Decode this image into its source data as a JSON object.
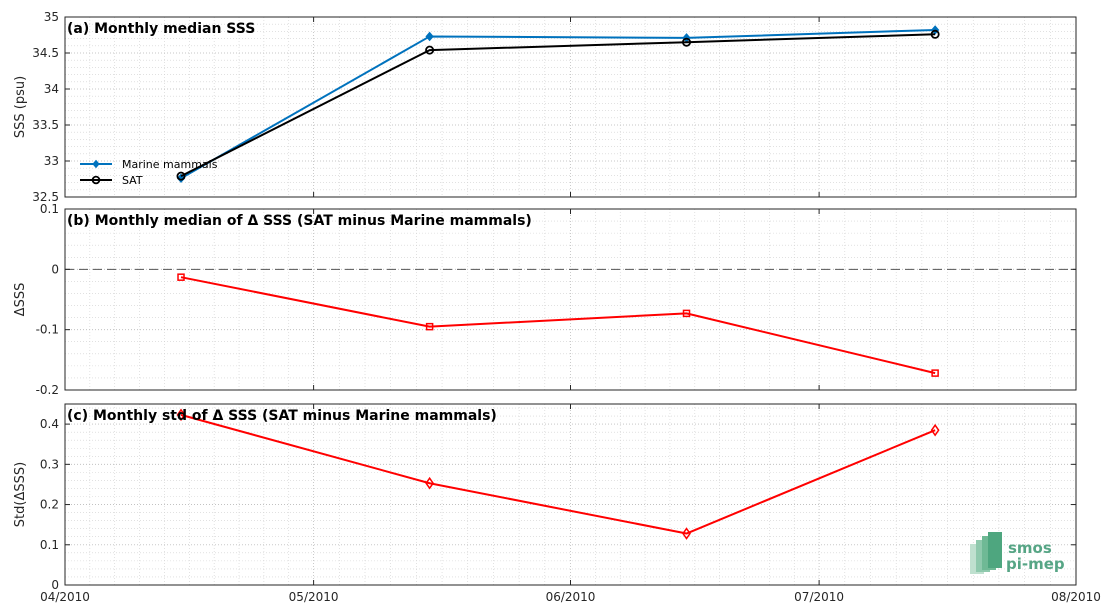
{
  "chart_data": [
    {
      "type": "line",
      "title": "(a) Monthly median SSS",
      "xlabel": "",
      "ylabel": "SSS (psu)",
      "xlim": [
        "2010-04-01",
        "2010-08-01"
      ],
      "ylim": [
        32.5,
        35
      ],
      "yticks": [
        "32.5",
        "33",
        "33.5",
        "34",
        "34.5",
        "35"
      ],
      "grid": true,
      "legend": "bottom-left",
      "x": [
        "2010-04-15",
        "2010-05-15",
        "2010-06-15",
        "2010-07-15"
      ],
      "series": [
        {
          "name": "Marine mammals",
          "color": "#0072bd",
          "marker": "diamond-filled",
          "values": [
            32.76,
            34.73,
            34.71,
            34.82
          ]
        },
        {
          "name": "SAT",
          "color": "#000000",
          "marker": "circle-open",
          "values": [
            32.79,
            34.54,
            34.65,
            34.76
          ]
        }
      ]
    },
    {
      "type": "line",
      "title": "(b) Monthly median of Δ SSS (SAT minus Marine mammals)",
      "xlabel": "",
      "ylabel": "ΔSSS",
      "xlim": [
        "2010-04-01",
        "2010-08-01"
      ],
      "ylim": [
        -0.2,
        0.1
      ],
      "yticks": [
        "-0.2",
        "-0.1",
        "0",
        "0.1"
      ],
      "grid": true,
      "reference_line": 0,
      "x": [
        "2010-04-15",
        "2010-05-15",
        "2010-06-15",
        "2010-07-15"
      ],
      "series": [
        {
          "color": "#ff0000",
          "marker": "square-open",
          "values": [
            -0.013,
            -0.095,
            -0.073,
            -0.172
          ]
        }
      ]
    },
    {
      "type": "line",
      "title": "(c) Monthly std of Δ SSS (SAT minus Marine mammals)",
      "xlabel": "",
      "ylabel": "Std(ΔSSS)",
      "xlim": [
        "2010-04-01",
        "2010-08-01"
      ],
      "ylim": [
        0,
        0.45
      ],
      "yticks": [
        "0",
        "0.1",
        "0.2",
        "0.3",
        "0.4"
      ],
      "grid": true,
      "x": [
        "2010-04-15",
        "2010-05-15",
        "2010-06-15",
        "2010-07-15"
      ],
      "x_tick_labels": [
        "04/2010",
        "05/2010",
        "06/2010",
        "07/2010",
        "08/2010"
      ],
      "series": [
        {
          "color": "#ff0000",
          "marker": "diamond-open",
          "values": [
            0.423,
            0.253,
            0.128,
            0.385
          ]
        }
      ]
    }
  ],
  "logo": {
    "line1": "smos",
    "line2": "pi-mep",
    "color": "#56a585"
  }
}
